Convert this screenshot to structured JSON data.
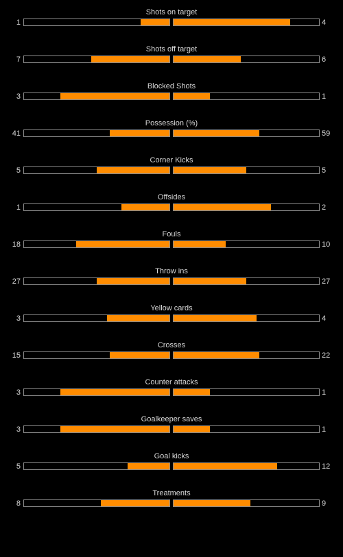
{
  "colors": {
    "background": "#000000",
    "text": "#d9d9d9",
    "bar_fill": "#ff8c00",
    "bar_border": "#8a8a8a"
  },
  "stats": [
    {
      "label": "Shots on target",
      "home": "1",
      "away": "4",
      "home_fill": 0.2,
      "away_fill": 0.8
    },
    {
      "label": "Shots off target",
      "home": "7",
      "away": "6",
      "home_fill": 0.54,
      "away_fill": 0.46
    },
    {
      "label": "Blocked Shots",
      "home": "3",
      "away": "1",
      "home_fill": 0.75,
      "away_fill": 0.25
    },
    {
      "label": "Possession (%)",
      "home": "41",
      "away": "59",
      "home_fill": 0.41,
      "away_fill": 0.59
    },
    {
      "label": "Corner Kicks",
      "home": "5",
      "away": "5",
      "home_fill": 0.5,
      "away_fill": 0.5
    },
    {
      "label": "Offsides",
      "home": "1",
      "away": "2",
      "home_fill": 0.33,
      "away_fill": 0.67
    },
    {
      "label": "Fouls",
      "home": "18",
      "away": "10",
      "home_fill": 0.64,
      "away_fill": 0.36
    },
    {
      "label": "Throw ins",
      "home": "27",
      "away": "27",
      "home_fill": 0.5,
      "away_fill": 0.5
    },
    {
      "label": "Yellow cards",
      "home": "3",
      "away": "4",
      "home_fill": 0.43,
      "away_fill": 0.57
    },
    {
      "label": "Crosses",
      "home": "15",
      "away": "22",
      "home_fill": 0.41,
      "away_fill": 0.59
    },
    {
      "label": "Counter attacks",
      "home": "3",
      "away": "1",
      "home_fill": 0.75,
      "away_fill": 0.25
    },
    {
      "label": "Goalkeeper saves",
      "home": "3",
      "away": "1",
      "home_fill": 0.75,
      "away_fill": 0.25
    },
    {
      "label": "Goal kicks",
      "home": "5",
      "away": "12",
      "home_fill": 0.29,
      "away_fill": 0.71
    },
    {
      "label": "Treatments",
      "home": "8",
      "away": "9",
      "home_fill": 0.47,
      "away_fill": 0.53
    }
  ]
}
